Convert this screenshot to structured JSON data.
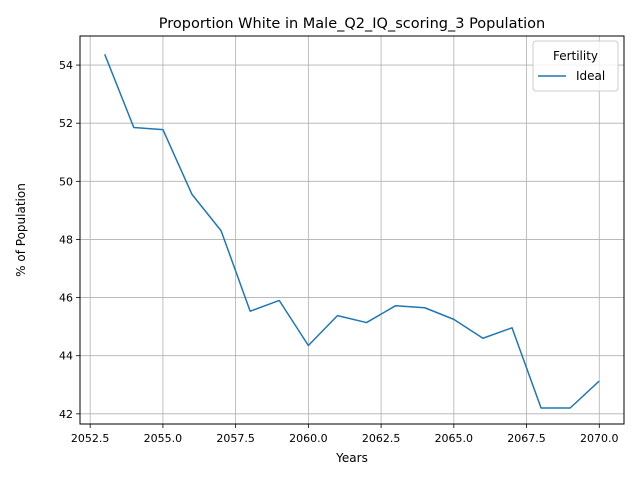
{
  "chart_data": {
    "type": "line",
    "title": "Proportion White in Male_Q2_IQ_scoring_3 Population",
    "xlabel": "Years",
    "ylabel": "% of Population",
    "xlim": [
      2052.15,
      2070.85
    ],
    "ylim": [
      41.65,
      55.0
    ],
    "x_ticks": [
      2052.5,
      2055.0,
      2057.5,
      2060.0,
      2062.5,
      2065.0,
      2067.5,
      2070.0
    ],
    "x_tick_labels": [
      "2052.5",
      "2055.0",
      "2057.5",
      "2060.0",
      "2062.5",
      "2065.0",
      "2067.5",
      "2070.0"
    ],
    "y_ticks": [
      42,
      44,
      46,
      48,
      50,
      52,
      54
    ],
    "y_tick_labels": [
      "42",
      "44",
      "46",
      "48",
      "50",
      "52",
      "54"
    ],
    "grid": true,
    "legend": {
      "title": "Fertility",
      "placement": "top-right"
    },
    "series": [
      {
        "name": "Ideal",
        "color": "#1f77b4",
        "x": [
          2053,
          2054,
          2055,
          2056,
          2057,
          2058,
          2059,
          2060,
          2061,
          2062,
          2063,
          2064,
          2065,
          2066,
          2067,
          2068,
          2069,
          2070
        ],
        "y": [
          54.37,
          51.85,
          51.78,
          49.55,
          48.3,
          45.53,
          45.9,
          44.35,
          45.38,
          45.14,
          45.72,
          45.65,
          45.25,
          44.6,
          44.96,
          42.2,
          42.2,
          43.13
        ]
      }
    ]
  }
}
